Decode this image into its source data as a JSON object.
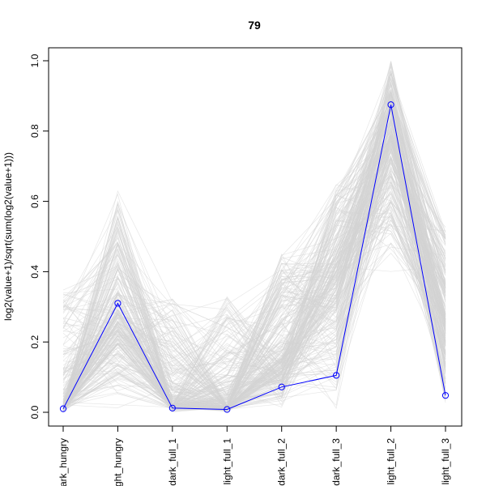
{
  "chart_data": {
    "type": "line",
    "title": "79",
    "xlabel": "",
    "ylabel": "log2(value+1)/sqrt(sum(log2(value+1)))",
    "categories": [
      "dark_hungry",
      "light_hungry",
      "dark_full_1",
      "light_full_1",
      "dark_full_2",
      "dark_full_3",
      "light_full_2",
      "light_full_3"
    ],
    "category_labels_visible": [
      "ark_hungry",
      "ght_hungry",
      "dark_full_1",
      "light_full_1",
      "dark_full_2",
      "dark_full_3",
      "light_full_2",
      "light_full_3"
    ],
    "ylim": [
      0,
      1.0
    ],
    "yticks": [
      0.0,
      0.2,
      0.4,
      0.6,
      0.8,
      1.0
    ],
    "ytick_labels": [
      "0.0",
      "0.2",
      "0.4",
      "0.6",
      "0.8",
      "1.0"
    ],
    "grid": false,
    "series": [
      {
        "values": [
          0.01,
          0.31,
          0.012,
          0.008,
          0.072,
          0.105,
          0.875,
          0.048
        ],
        "color": "#0000ff",
        "markers": "open-circle"
      }
    ],
    "background_series": {
      "color": "#d3d3d3",
      "ranges": [
        [
          0.0,
          0.35
        ],
        [
          0.0,
          0.63
        ],
        [
          0.0,
          0.33
        ],
        [
          0.0,
          0.33
        ],
        [
          0.0,
          0.45
        ],
        [
          0.0,
          0.65
        ],
        [
          0.39,
          1.0
        ],
        [
          0.0,
          0.53
        ]
      ],
      "typical": [
        0.02,
        0.28,
        0.02,
        0.02,
        0.15,
        0.4,
        0.78,
        0.25
      ]
    }
  }
}
